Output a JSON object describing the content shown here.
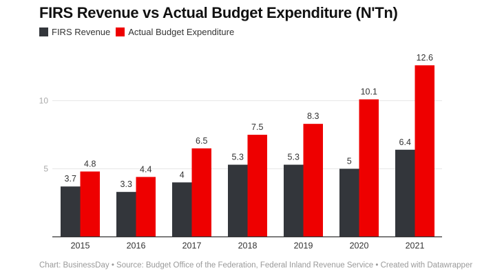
{
  "colors": {
    "firs": "#33363b",
    "expenditure": "#ee0000",
    "grid": "#e6e6e6",
    "axis": "#333333"
  },
  "footer": "Chart: BusinessDay • Source: Budget Office of the Federation, Federal Inland Revenue Service • Created with Datawrapper",
  "chart_data": {
    "type": "bar",
    "title": "FIRS Revenue vs Actual Budget Expenditure (N'Tn)",
    "xlabel": "",
    "ylabel": "",
    "categories": [
      "2015",
      "2016",
      "2017",
      "2018",
      "2019",
      "2020",
      "2021"
    ],
    "series": [
      {
        "name": "FIRS Revenue",
        "values": [
          3.7,
          3.3,
          4,
          5.3,
          5.3,
          5,
          6.4
        ]
      },
      {
        "name": "Actual Budget Expenditure",
        "values": [
          4.8,
          4.4,
          6.5,
          7.5,
          8.3,
          10.1,
          12.6
        ]
      }
    ],
    "yticks": [
      "5",
      "10"
    ],
    "ylim": [
      0,
      14
    ],
    "grid": true,
    "legend": "top-left"
  }
}
